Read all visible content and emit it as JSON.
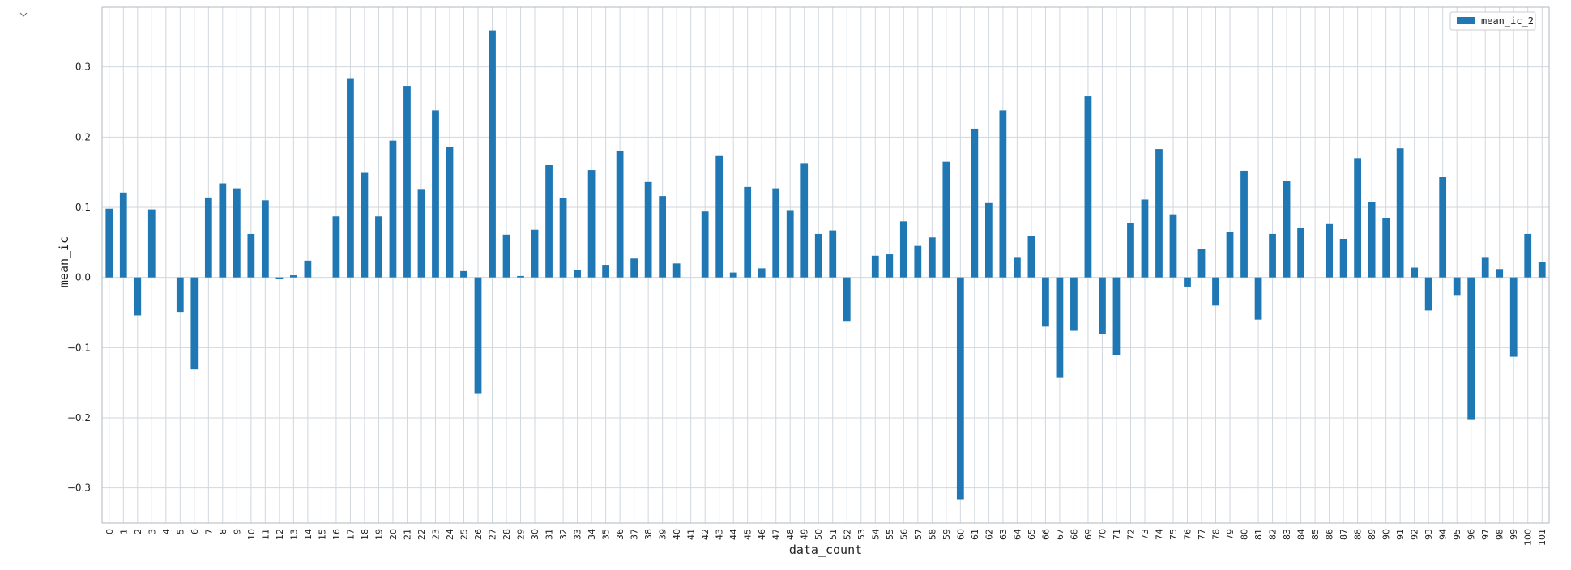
{
  "toolbar": {
    "collapse_icon": "chevron-down-icon"
  },
  "chart_data": {
    "type": "bar",
    "xlabel": "data_count",
    "ylabel": "mean_ic",
    "ylim": [
      -0.35,
      0.385
    ],
    "yticks": [
      -0.3,
      -0.2,
      -0.1,
      0.0,
      0.1,
      0.2,
      0.3
    ],
    "grid": true,
    "legend": "top-right",
    "colors": {
      "bar": "#1f77b4",
      "grid": "#d0d7de",
      "axes": "#b0b8c1"
    },
    "categories": [
      "0",
      "1",
      "2",
      "3",
      "4",
      "5",
      "6",
      "7",
      "8",
      "9",
      "10",
      "11",
      "12",
      "13",
      "14",
      "15",
      "16",
      "17",
      "18",
      "19",
      "20",
      "21",
      "22",
      "23",
      "24",
      "25",
      "26",
      "27",
      "28",
      "29",
      "30",
      "31",
      "32",
      "33",
      "34",
      "35",
      "36",
      "37",
      "38",
      "39",
      "40",
      "41",
      "42",
      "43",
      "44",
      "45",
      "46",
      "47",
      "48",
      "49",
      "50",
      "51",
      "52",
      "53",
      "54",
      "55",
      "56",
      "57",
      "58",
      "59",
      "60",
      "61",
      "62",
      "63",
      "64",
      "65",
      "66",
      "67",
      "68",
      "69",
      "70",
      "71",
      "72",
      "73",
      "74",
      "75",
      "76",
      "77",
      "78",
      "79",
      "80",
      "81",
      "82",
      "83",
      "84",
      "85",
      "86",
      "87",
      "88",
      "89",
      "90",
      "91",
      "92",
      "93",
      "94",
      "95",
      "96",
      "97",
      "98",
      "99",
      "100",
      "101"
    ],
    "series": [
      {
        "name": "mean_ic_2",
        "values": [
          0.098,
          0.121,
          -0.054,
          0.097,
          0.0,
          -0.049,
          -0.131,
          0.114,
          0.134,
          0.127,
          0.062,
          0.11,
          -0.002,
          0.003,
          0.024,
          0.0,
          0.087,
          0.284,
          0.149,
          0.087,
          0.195,
          0.273,
          0.125,
          0.238,
          0.186,
          0.009,
          -0.166,
          0.352,
          0.061,
          0.002,
          0.068,
          0.16,
          0.113,
          0.01,
          0.153,
          0.018,
          0.18,
          0.027,
          0.136,
          0.116,
          0.02,
          0.0,
          0.094,
          0.173,
          0.007,
          0.129,
          0.013,
          0.127,
          0.096,
          0.163,
          0.062,
          0.067,
          -0.063,
          0.0,
          0.031,
          0.033,
          0.08,
          0.045,
          0.057,
          0.165,
          -0.316,
          0.212,
          0.106,
          0.238,
          0.028,
          0.059,
          -0.07,
          -0.143,
          -0.076,
          0.258,
          -0.081,
          -0.111,
          0.078,
          0.111,
          0.183,
          0.09,
          -0.013,
          0.041,
          -0.04,
          0.065,
          0.152,
          -0.06,
          0.062,
          0.138,
          0.071,
          0.0,
          0.076,
          0.055,
          0.17,
          0.107,
          0.085,
          0.184,
          0.014,
          -0.047,
          0.143,
          -0.025,
          -0.203,
          0.028,
          0.012,
          -0.113,
          0.062,
          0.022
        ]
      }
    ]
  }
}
